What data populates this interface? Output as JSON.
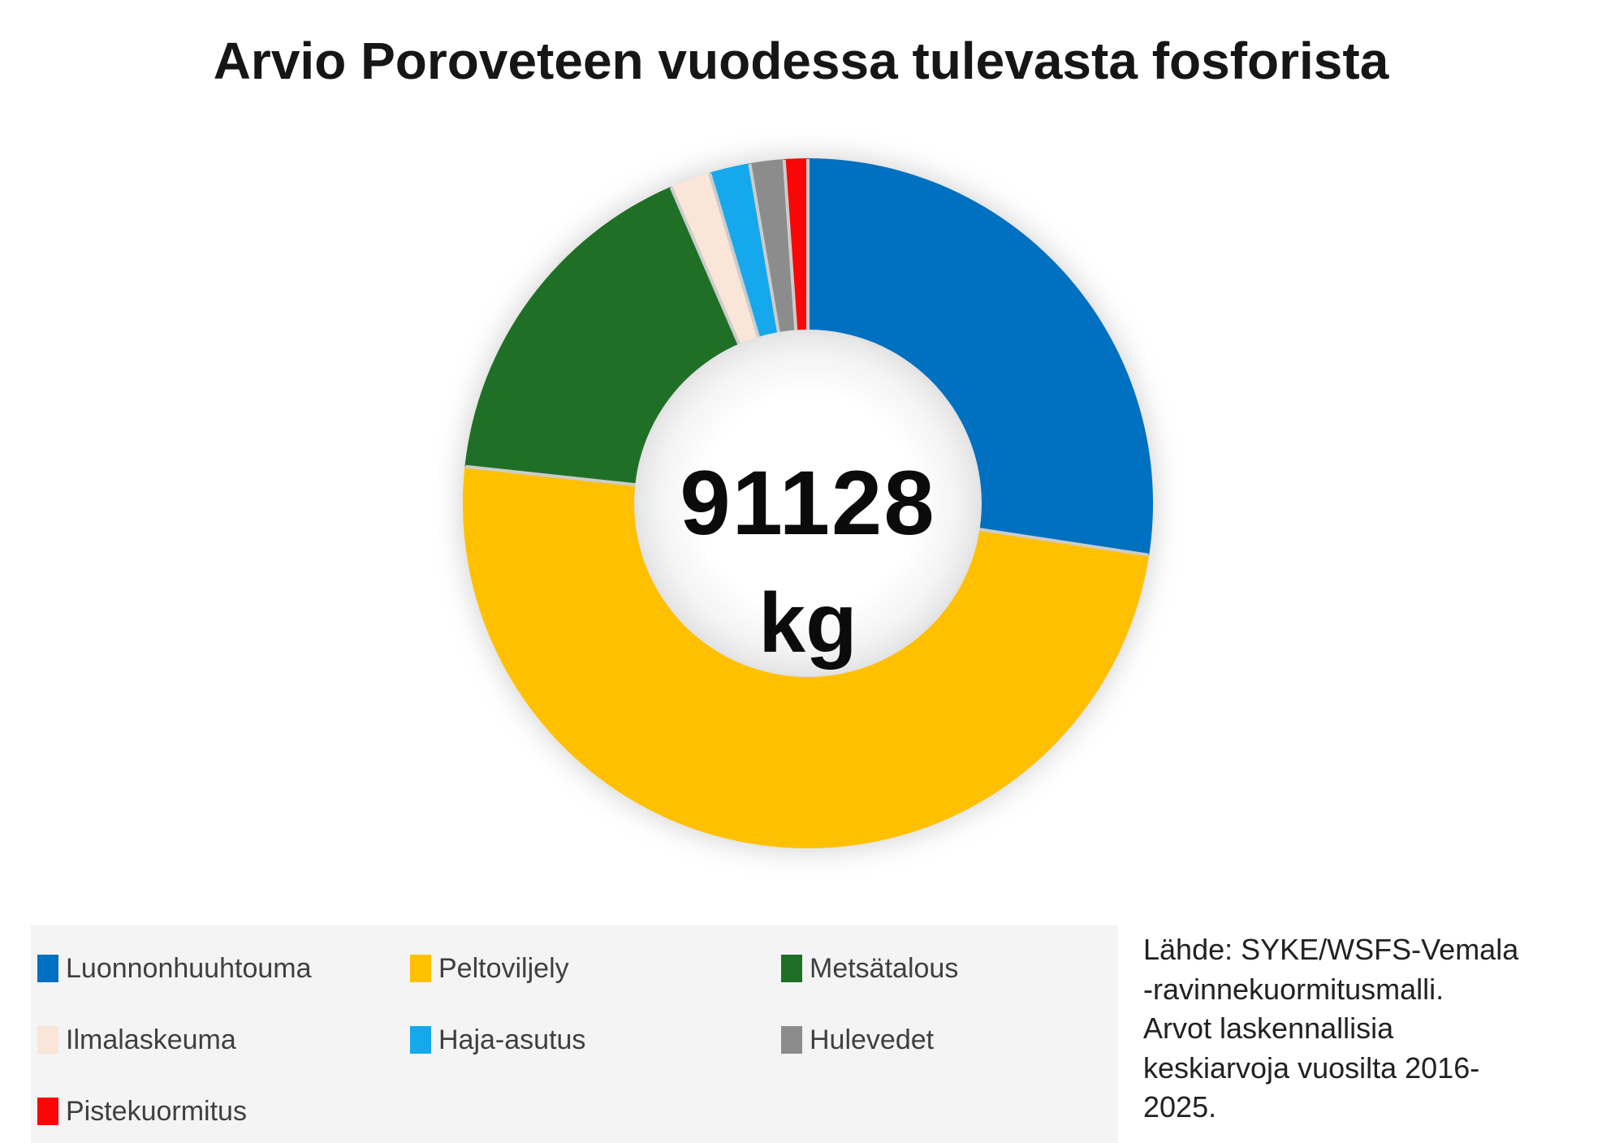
{
  "title": "Arvio Poroveteen vuodessa tulevasta fosforista",
  "center_label": {
    "value": "91128",
    "unit": "kg"
  },
  "source_note": "Lähde: SYKE/WSFS-Vemala\n-ravinnekuormitusmalli.\nArvot laskennallisia\nkeskiarvoja vuosilta 2016-\n2025.",
  "colors": {
    "legend_panel_bg": "#f4f4f4",
    "title_text": "#161616",
    "legend_text": "#3f3f3f",
    "source_text": "#212121",
    "slice_separator": "#cccccc",
    "background": "#ffffff"
  },
  "chart_data": {
    "type": "pie",
    "donut": true,
    "title": "Arvio Poroveteen vuodessa tulevasta fosforista",
    "center_total_label": "91128 kg",
    "total_kg": 91128,
    "categories": [
      "Luonnonhuuhtouma",
      "Peltoviljely",
      "Metsätalous",
      "Ilmalaskeuma",
      "Haja-asutus",
      "Hulevedet",
      "Pistekuormitus"
    ],
    "values_pct_est": [
      27.4,
      49.3,
      16.8,
      1.9,
      1.9,
      1.6,
      1.1
    ],
    "values_kg_est": [
      24970,
      44925,
      15310,
      1730,
      1730,
      1460,
      1003
    ],
    "colors": [
      "#0070C0",
      "#FFC000",
      "#1F7026",
      "#FAE5D9",
      "#15A8EC",
      "#8C8C8C",
      "#F90606"
    ],
    "start_angle_deg": 0,
    "direction": "clockwise",
    "legend_position": "bottom-left",
    "source": "Lähde: SYKE/WSFS-Vemala -ravinnekuormitusmalli. Arvot laskennallisia keskiarvoja vuosilta 2016-2025."
  }
}
